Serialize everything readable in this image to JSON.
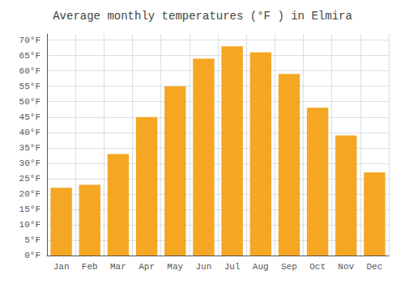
{
  "chart_data": {
    "type": "bar",
    "title": "Average monthly temperatures (°F ) in Elmira",
    "categories": [
      "Jan",
      "Feb",
      "Mar",
      "Apr",
      "May",
      "Jun",
      "Jul",
      "Aug",
      "Sep",
      "Oct",
      "Nov",
      "Dec"
    ],
    "values": [
      22,
      23,
      33,
      45,
      55,
      64,
      68,
      66,
      59,
      48,
      39,
      27
    ],
    "color": "#F5A623",
    "ylim": [
      0,
      72
    ],
    "yticks": [
      {
        "value": 0,
        "label": "0°F"
      },
      {
        "value": 5,
        "label": "5°F"
      },
      {
        "value": 10,
        "label": "10°F"
      },
      {
        "value": 15,
        "label": "15°F"
      },
      {
        "value": 20,
        "label": "20°F"
      },
      {
        "value": 25,
        "label": "25°F"
      },
      {
        "value": 30,
        "label": "30°F"
      },
      {
        "value": 35,
        "label": "35°F"
      },
      {
        "value": 40,
        "label": "40°F"
      },
      {
        "value": 45,
        "label": "45°F"
      },
      {
        "value": 50,
        "label": "50°F"
      },
      {
        "value": 55,
        "label": "55°F"
      },
      {
        "value": 60,
        "label": "60°F"
      },
      {
        "value": 65,
        "label": "65°F"
      },
      {
        "value": 70,
        "label": "70°F"
      }
    ],
    "grid": true
  }
}
